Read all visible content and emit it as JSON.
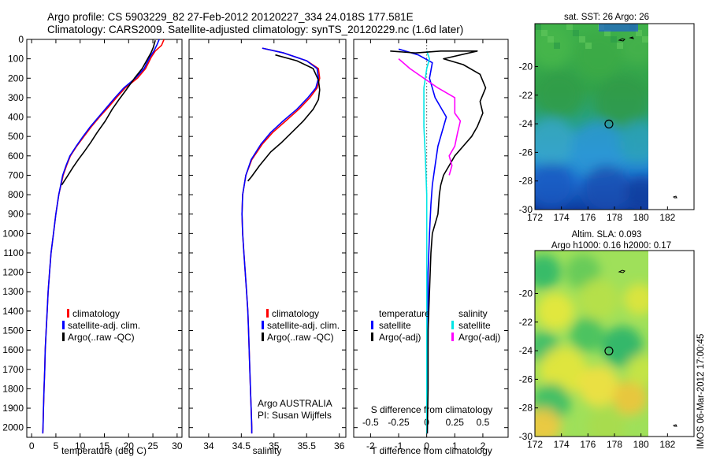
{
  "header": {
    "line1": "Argo profile: CS 5903229_82 27-Feb-2012 20120227_334 24.018S 177.581E",
    "line2": "Climatology: CARS2009. Satellite-adjusted climatology: synTS_20120229.nc (1.6d later)"
  },
  "colors": {
    "climatology": "#ff0000",
    "satellite": "#0000ff",
    "argo": "#000000",
    "sat_salinity": "#00e5e5",
    "argo_salinity": "#ff00ff"
  },
  "chart_data": [
    {
      "type": "line",
      "id": "temperature",
      "xlabel": "temperature (deg C)",
      "ylabel": "",
      "xlim": [
        -1,
        31
      ],
      "xticks": [
        0,
        5,
        10,
        15,
        20,
        25,
        30
      ],
      "ylim": [
        2050,
        0
      ],
      "yticks": [
        0,
        100,
        200,
        300,
        400,
        500,
        600,
        700,
        800,
        900,
        1000,
        1100,
        1200,
        1300,
        1400,
        1500,
        1600,
        1700,
        1800,
        1900,
        2000
      ],
      "legend": [
        "climatology",
        "satellite-adj. clim.",
        "Argo(..raw -QC)"
      ],
      "series": [
        {
          "name": "climatology",
          "color": "#ff0000",
          "points": [
            [
              27.3,
              0
            ],
            [
              26.8,
              30
            ],
            [
              25.5,
              60
            ],
            [
              24.7,
              90
            ],
            [
              23.5,
              150
            ],
            [
              21.8,
              200
            ],
            [
              19.3,
              250
            ],
            [
              17.5,
              300
            ],
            [
              15.8,
              350
            ],
            [
              14.0,
              400
            ],
            [
              12.3,
              450
            ],
            [
              10.8,
              500
            ],
            [
              9.3,
              550
            ],
            [
              8.0,
              600
            ],
            [
              7.2,
              650
            ],
            [
              6.5,
              700
            ],
            [
              5.6,
              800
            ],
            [
              5.0,
              900
            ],
            [
              4.5,
              1000
            ],
            [
              4.0,
              1100
            ],
            [
              3.7,
              1200
            ],
            [
              3.4,
              1300
            ],
            [
              3.2,
              1400
            ],
            [
              3.0,
              1500
            ],
            [
              2.8,
              1600
            ],
            [
              2.7,
              1700
            ],
            [
              2.55,
              1800
            ],
            [
              2.45,
              1900
            ],
            [
              2.35,
              2000
            ],
            [
              2.3,
              2030
            ]
          ]
        },
        {
          "name": "satellite-adj. clim.",
          "color": "#0000ff",
          "points": [
            [
              26.3,
              0
            ],
            [
              25.8,
              30
            ],
            [
              25.2,
              60
            ],
            [
              24.4,
              90
            ],
            [
              23.2,
              150
            ],
            [
              21.4,
              200
            ],
            [
              19.0,
              250
            ],
            [
              17.2,
              300
            ],
            [
              15.5,
              350
            ],
            [
              13.8,
              400
            ],
            [
              12.1,
              450
            ],
            [
              10.6,
              500
            ],
            [
              9.2,
              550
            ],
            [
              7.9,
              600
            ],
            [
              7.1,
              650
            ],
            [
              6.4,
              700
            ],
            [
              5.6,
              800
            ],
            [
              5.0,
              900
            ],
            [
              4.5,
              1000
            ],
            [
              4.0,
              1100
            ],
            [
              3.7,
              1200
            ],
            [
              3.4,
              1300
            ],
            [
              3.2,
              1400
            ],
            [
              3.0,
              1500
            ],
            [
              2.8,
              1600
            ],
            [
              2.7,
              1700
            ],
            [
              2.55,
              1800
            ],
            [
              2.45,
              1900
            ],
            [
              2.35,
              2000
            ],
            [
              2.3,
              2030
            ]
          ]
        },
        {
          "name": "Argo(..raw -QC)",
          "color": "#000000",
          "points": [
            [
              25.5,
              5
            ],
            [
              25.1,
              40
            ],
            [
              24.6,
              70
            ],
            [
              22.8,
              150
            ],
            [
              21.2,
              200
            ],
            [
              19.5,
              260
            ],
            [
              18.0,
              310
            ],
            [
              16.6,
              360
            ],
            [
              15.2,
              420
            ],
            [
              13.5,
              480
            ],
            [
              12.2,
              530
            ],
            [
              10.8,
              580
            ],
            [
              9.6,
              620
            ],
            [
              8.5,
              660
            ],
            [
              7.5,
              700
            ],
            [
              6.2,
              750
            ]
          ]
        }
      ]
    },
    {
      "type": "line",
      "id": "salinity",
      "xlabel": "salinity",
      "ylabel": "",
      "xlim": [
        33.7,
        36.1
      ],
      "xticks": [
        34,
        34.5,
        35,
        35.5,
        36
      ],
      "ylim": [
        2050,
        0
      ],
      "legend": [
        "climatology",
        "satellite-adj. clim.",
        "Argo(..raw -QC)"
      ],
      "annotation": [
        "Argo AUSTRALIA",
        "PI: Susan Wijffels"
      ],
      "series": [
        {
          "name": "climatology",
          "color": "#ff0000",
          "points": [
            [
              34.82,
              45
            ],
            [
              35.15,
              70
            ],
            [
              35.5,
              110
            ],
            [
              35.68,
              150
            ],
            [
              35.7,
              200
            ],
            [
              35.66,
              250
            ],
            [
              35.55,
              300
            ],
            [
              35.38,
              360
            ],
            [
              35.18,
              420
            ],
            [
              34.98,
              480
            ],
            [
              34.82,
              540
            ],
            [
              34.66,
              620
            ],
            [
              34.57,
              700
            ],
            [
              34.52,
              800
            ],
            [
              34.51,
              900
            ],
            [
              34.52,
              1000
            ],
            [
              34.54,
              1100
            ],
            [
              34.56,
              1200
            ],
            [
              34.58,
              1300
            ],
            [
              34.6,
              1400
            ],
            [
              34.61,
              1500
            ],
            [
              34.62,
              1600
            ],
            [
              34.63,
              1700
            ],
            [
              34.64,
              1800
            ],
            [
              34.65,
              1900
            ],
            [
              34.66,
              2000
            ],
            [
              34.66,
              2030
            ]
          ]
        },
        {
          "name": "satellite-adj. clim.",
          "color": "#0000ff",
          "points": [
            [
              34.82,
              45
            ],
            [
              35.15,
              70
            ],
            [
              35.5,
              110
            ],
            [
              35.66,
              150
            ],
            [
              35.68,
              200
            ],
            [
              35.64,
              250
            ],
            [
              35.52,
              300
            ],
            [
              35.35,
              360
            ],
            [
              35.14,
              420
            ],
            [
              34.95,
              480
            ],
            [
              34.8,
              540
            ],
            [
              34.65,
              620
            ],
            [
              34.57,
              700
            ],
            [
              34.52,
              800
            ],
            [
              34.51,
              900
            ],
            [
              34.52,
              1000
            ],
            [
              34.54,
              1100
            ],
            [
              34.56,
              1200
            ],
            [
              34.58,
              1300
            ],
            [
              34.6,
              1400
            ],
            [
              34.61,
              1500
            ],
            [
              34.62,
              1600
            ],
            [
              34.63,
              1700
            ],
            [
              34.64,
              1800
            ],
            [
              34.65,
              1900
            ],
            [
              34.66,
              2000
            ],
            [
              34.66,
              2030
            ]
          ]
        },
        {
          "name": "Argo(..raw -QC)",
          "color": "#000000",
          "points": [
            [
              35.02,
              80
            ],
            [
              35.35,
              110
            ],
            [
              35.6,
              150
            ],
            [
              35.68,
              210
            ],
            [
              35.7,
              260
            ],
            [
              35.68,
              310
            ],
            [
              35.6,
              360
            ],
            [
              35.45,
              420
            ],
            [
              35.3,
              470
            ],
            [
              35.12,
              530
            ],
            [
              34.95,
              580
            ],
            [
              34.78,
              650
            ],
            [
              34.65,
              710
            ],
            [
              34.6,
              730
            ]
          ]
        }
      ]
    },
    {
      "type": "line",
      "id": "differences",
      "xlabel": "T difference from climatology",
      "x2label": "S difference from climatology",
      "xlim": [
        -2.6,
        2.9
      ],
      "xticks": [
        -2,
        -1,
        0,
        1,
        2
      ],
      "sticks": [
        [
          "-0.5",
          -2
        ],
        [
          "-0.25",
          -1
        ],
        [
          "0",
          0
        ],
        [
          "0.25",
          1
        ],
        [
          "0.5",
          2
        ]
      ],
      "ylim": [
        2050,
        0
      ],
      "legend": {
        "temperature": [
          "temperature",
          "satellite",
          "Argo(-adj)"
        ],
        "salinity": [
          "salinity",
          "satellite",
          "Argo(-adj)"
        ]
      },
      "series": [
        {
          "name": "T satellite",
          "color": "#0000ff",
          "points": [
            [
              -1.0,
              50
            ],
            [
              -0.3,
              80
            ],
            [
              0.2,
              120
            ],
            [
              0.1,
              200
            ],
            [
              0.3,
              300
            ],
            [
              0.7,
              400
            ],
            [
              0.6,
              450
            ],
            [
              0.4,
              550
            ],
            [
              0.3,
              650
            ],
            [
              0.2,
              750
            ],
            [
              0.15,
              850
            ],
            [
              0.1,
              1000
            ],
            [
              0.05,
              1200
            ],
            [
              0.05,
              1500
            ],
            [
              0.03,
              1800
            ],
            [
              0.02,
              2030
            ]
          ]
        },
        {
          "name": "S satellite",
          "color": "#00e5e5",
          "points": [
            [
              0.0,
              60
            ],
            [
              0.1,
              100
            ],
            [
              0.0,
              150
            ],
            [
              -0.1,
              250
            ],
            [
              -0.1,
              350
            ],
            [
              -0.1,
              450
            ],
            [
              -0.05,
              600
            ],
            [
              0.0,
              800
            ],
            [
              0.0,
              1000
            ],
            [
              0.0,
              1200
            ],
            [
              0.0,
              1400
            ],
            [
              0.0,
              1600
            ],
            [
              0.0,
              1800
            ],
            [
              0.0,
              2030
            ]
          ]
        },
        {
          "name": "T Argo(-adj)",
          "color": "#000000",
          "points": [
            [
              -1.3,
              60
            ],
            [
              -0.4,
              70
            ],
            [
              0.5,
              60
            ],
            [
              1.8,
              60
            ],
            [
              0.6,
              100
            ],
            [
              1.3,
              130
            ],
            [
              1.9,
              180
            ],
            [
              2.1,
              250
            ],
            [
              1.9,
              320
            ],
            [
              2.0,
              380
            ],
            [
              1.8,
              450
            ],
            [
              1.6,
              500
            ],
            [
              1.3,
              550
            ],
            [
              1.0,
              600
            ],
            [
              0.8,
              650
            ],
            [
              0.6,
              700
            ],
            [
              0.5,
              750
            ],
            [
              0.45,
              800
            ],
            [
              0.4,
              900
            ],
            [
              0.2,
              1000
            ],
            [
              0.15,
              1100
            ],
            [
              0.1,
              1300
            ],
            [
              0.05,
              1500
            ],
            [
              0.05,
              1800
            ],
            [
              0.02,
              2030
            ]
          ]
        },
        {
          "name": "S Argo(-adj)",
          "color": "#ff00ff",
          "points": [
            [
              -1.0,
              100
            ],
            [
              -0.6,
              150
            ],
            [
              0.4,
              250
            ],
            [
              1.0,
              300
            ],
            [
              1.0,
              380
            ],
            [
              1.2,
              420
            ],
            [
              1.1,
              480
            ],
            [
              1.0,
              550
            ],
            [
              0.8,
              600
            ],
            [
              0.9,
              650
            ],
            [
              0.8,
              700
            ]
          ]
        }
      ]
    },
    {
      "type": "heatmap",
      "id": "sst-map",
      "title": "sat. SST: 26 Argo: 26",
      "xlim": [
        172,
        184
      ],
      "xticks": [
        172,
        174,
        176,
        178,
        180,
        182
      ],
      "ylim": [
        -30,
        -17
      ],
      "yticks": [
        -30,
        -28,
        -26,
        -24,
        -22,
        -20
      ],
      "marker": {
        "lon": 177.581,
        "lat": -24.018
      }
    },
    {
      "type": "heatmap",
      "id": "sla-map",
      "title": [
        "Altim. SLA: 0.093",
        "Argo h1000: 0.16 h2000: 0.17"
      ],
      "xlim": [
        172,
        184
      ],
      "xticks": [
        172,
        174,
        176,
        178,
        180,
        182
      ],
      "ylim": [
        -30,
        -17
      ],
      "yticks": [
        -30,
        -28,
        -26,
        -24,
        -22,
        -20
      ],
      "marker": {
        "lon": 177.581,
        "lat": -24.018
      }
    }
  ],
  "footer": "IMOS 06-Mar-2012 17:00:45"
}
